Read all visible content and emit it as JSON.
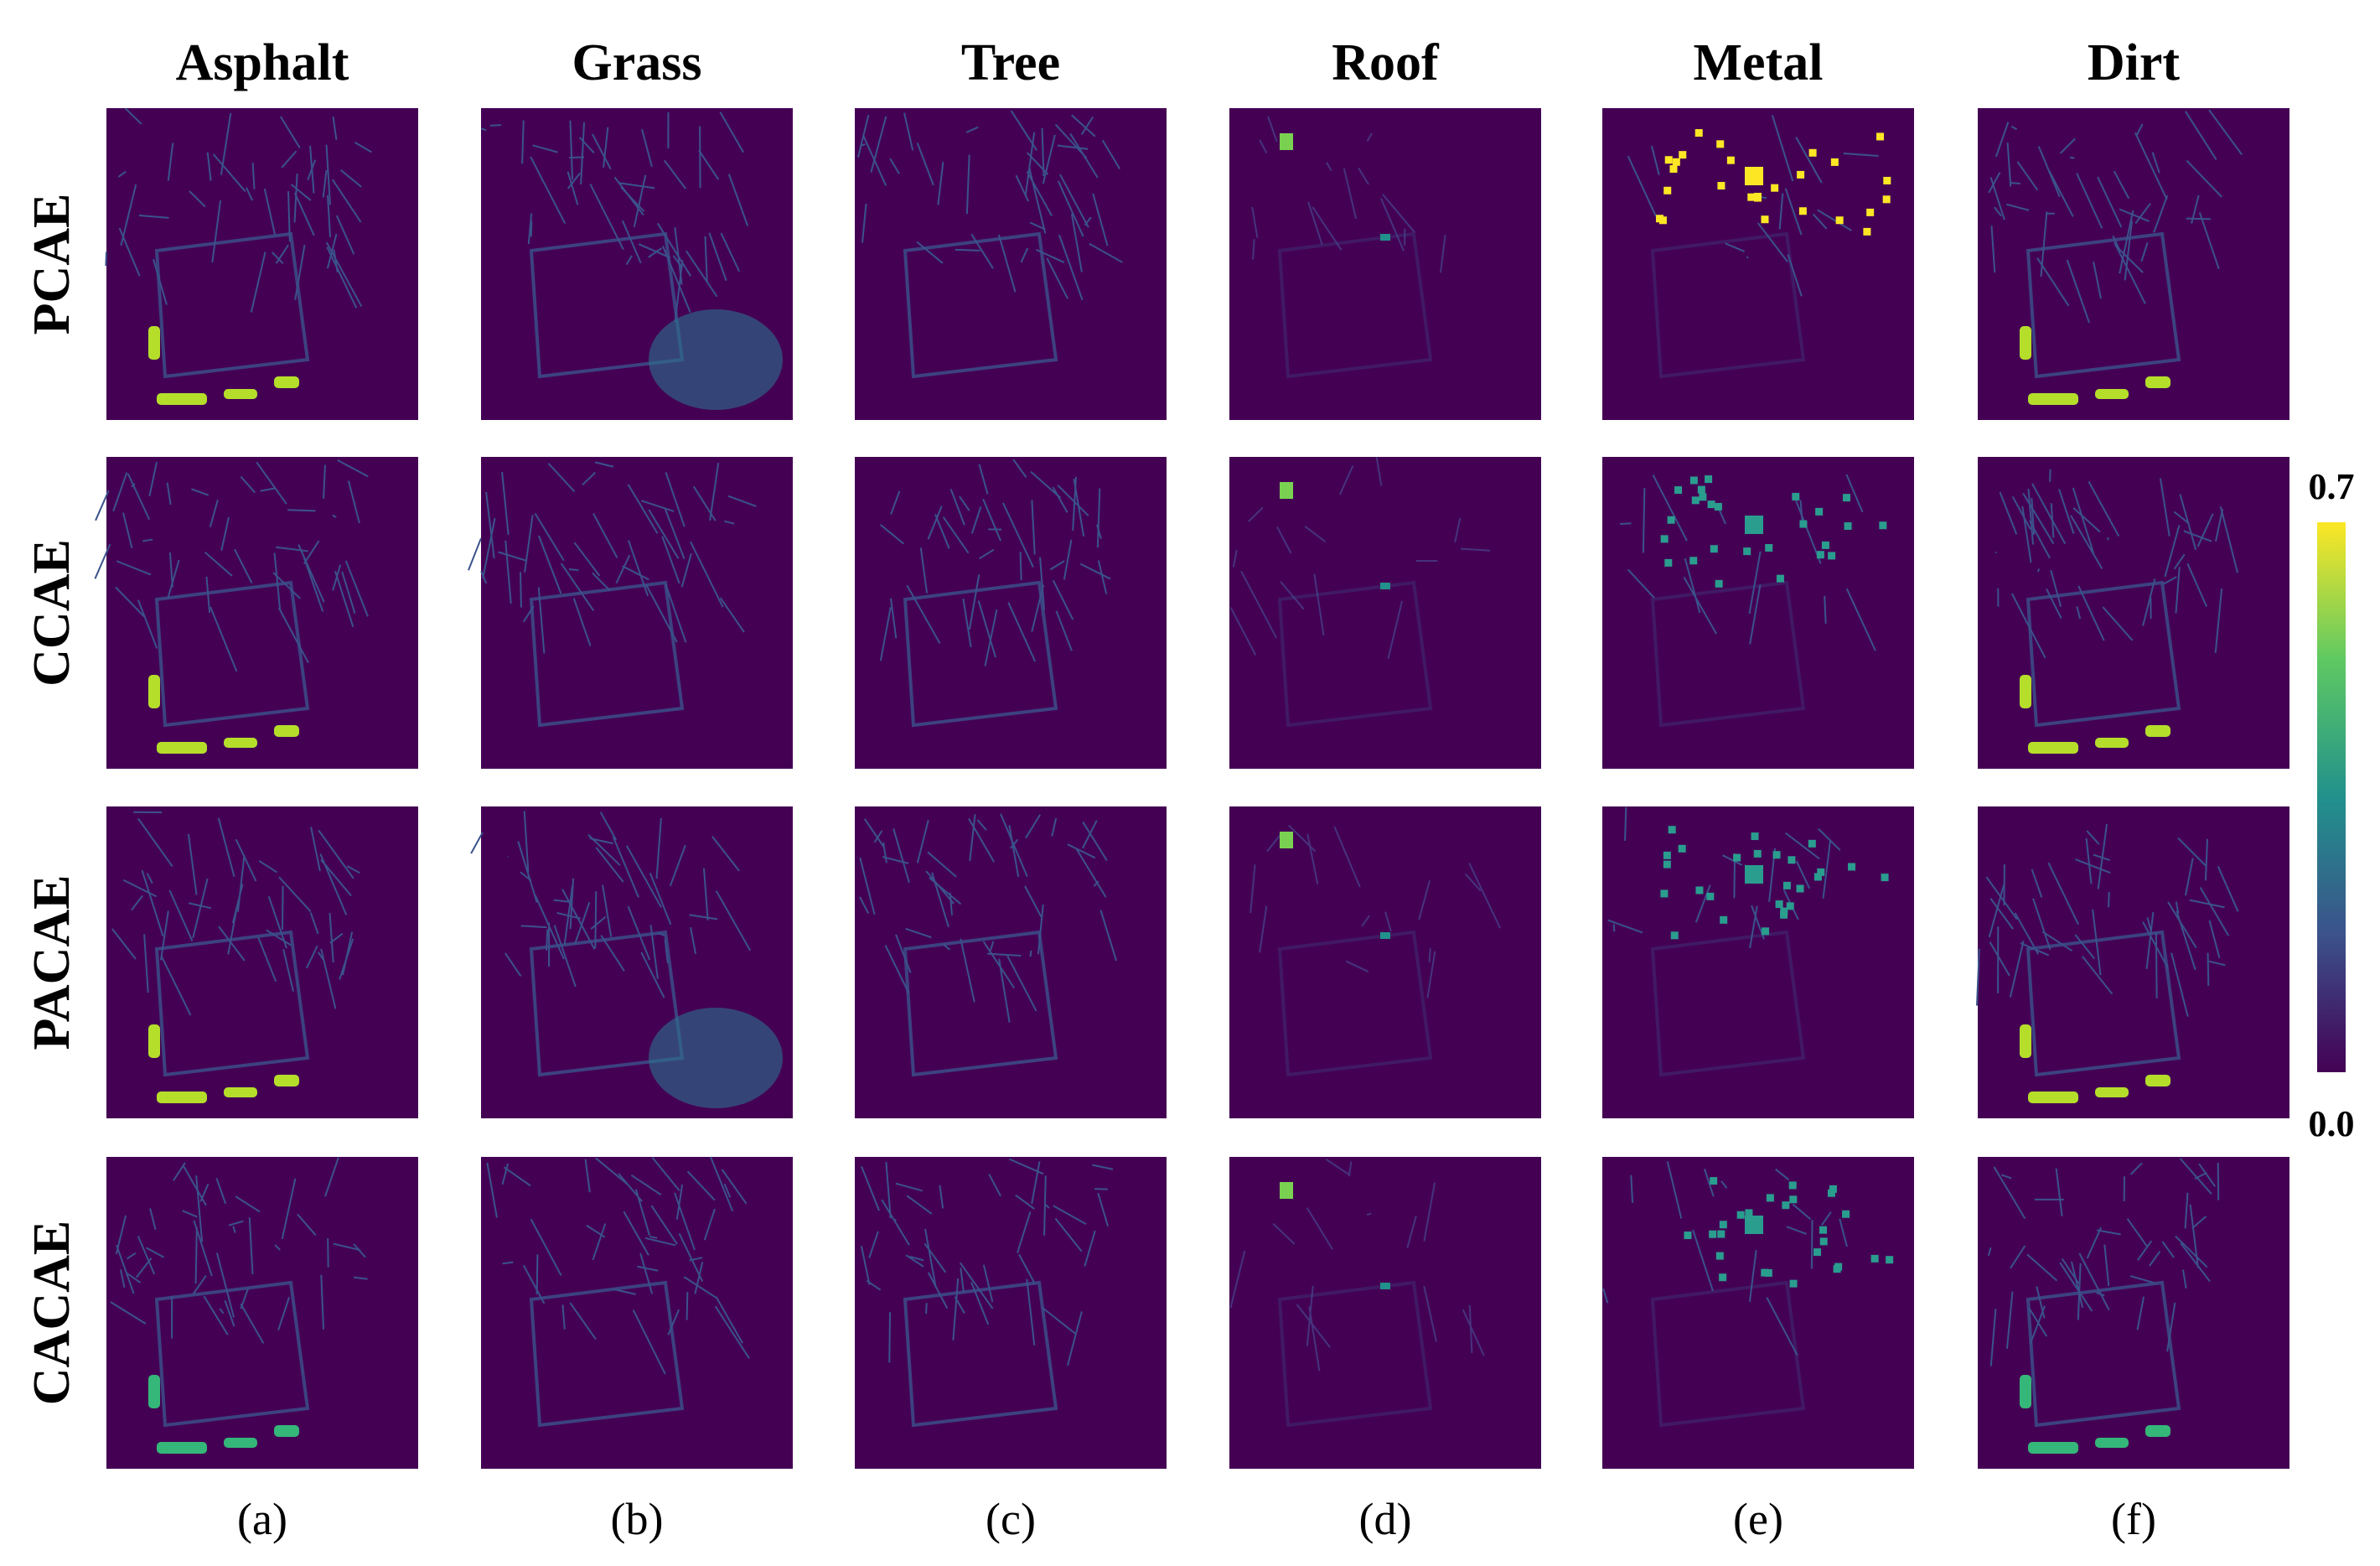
{
  "columns": [
    "Asphalt",
    "Grass",
    "Tree",
    "Roof",
    "Metal",
    "Dirt"
  ],
  "rows": [
    "PCAE",
    "CCAE",
    "PACAE",
    "CACAE"
  ],
  "panel_labels": [
    "(a)",
    "(b)",
    "(c)",
    "(d)",
    "(e)",
    "(f)"
  ],
  "colorbar": {
    "max_label": "0.7",
    "min_label": "0.0"
  }
}
